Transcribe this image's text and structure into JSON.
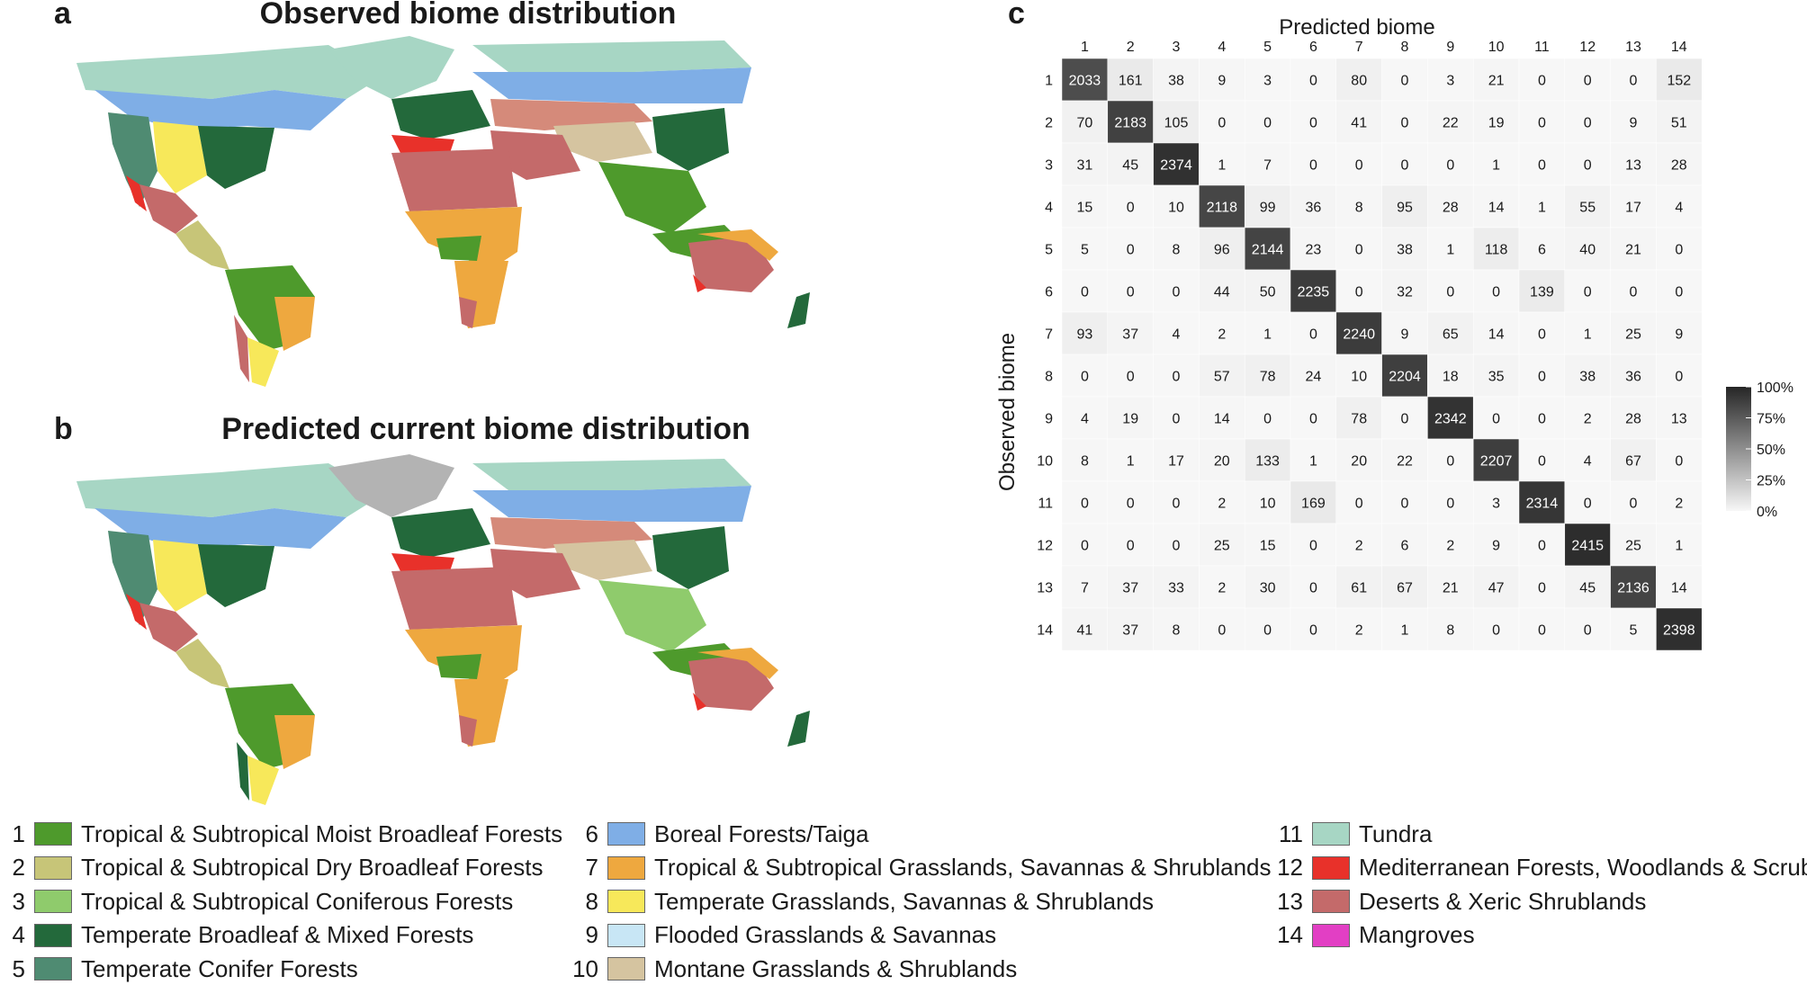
{
  "panels": {
    "a": {
      "letter": "a",
      "title": "Observed biome distribution"
    },
    "b": {
      "letter": "b",
      "title": "Predicted current biome distribution"
    },
    "c": {
      "letter": "c"
    }
  },
  "legend": [
    {
      "num": "1",
      "label": "Tropical & Subtropical Moist Broadleaf Forests",
      "color": "#4e9a2c"
    },
    {
      "num": "2",
      "label": "Tropical & Subtropical Dry Broadleaf Forests",
      "color": "#c7c578"
    },
    {
      "num": "3",
      "label": "Tropical & Subtropical Coniferous Forests",
      "color": "#8fcb6c"
    },
    {
      "num": "4",
      "label": "Temperate Broadleaf & Mixed Forests",
      "color": "#23693b"
    },
    {
      "num": "5",
      "label": "Temperate Conifer Forests",
      "color": "#4f8b72"
    },
    {
      "num": "6",
      "label": "Boreal Forests/Taiga",
      "color": "#7faee6"
    },
    {
      "num": "7",
      "label": "Tropical & Subtropical Grasslands, Savannas & Shrublands",
      "color": "#eea83f"
    },
    {
      "num": "8",
      "label": "Temperate Grasslands, Savannas & Shrublands",
      "color": "#f7e85a"
    },
    {
      "num": "9",
      "label": "Flooded Grasslands & Savannas",
      "color": "#c8e6f5"
    },
    {
      "num": "10",
      "label": "Montane Grasslands & Shrublands",
      "color": "#d5c4a0"
    },
    {
      "num": "11",
      "label": "Tundra",
      "color": "#a7d6c4"
    },
    {
      "num": "12",
      "label": "Mediterranean Forests, Woodlands & Scrub",
      "color": "#e8312a"
    },
    {
      "num": "13",
      "label": "Deserts & Xeric Shrublands",
      "color": "#c46a6a"
    },
    {
      "num": "14",
      "label": "Mangroves",
      "color": "#e23fc4"
    }
  ],
  "chart_data": {
    "type": "heatmap",
    "title": "",
    "xlabel": "Predicted biome",
    "ylabel": "Observed biome",
    "categories": [
      "1",
      "2",
      "3",
      "4",
      "5",
      "6",
      "7",
      "8",
      "9",
      "10",
      "11",
      "12",
      "13",
      "14"
    ],
    "matrix": [
      [
        2033,
        161,
        38,
        9,
        3,
        0,
        80,
        0,
        3,
        21,
        0,
        0,
        0,
        152
      ],
      [
        70,
        2183,
        105,
        0,
        0,
        0,
        41,
        0,
        22,
        19,
        0,
        0,
        9,
        51
      ],
      [
        31,
        45,
        2374,
        1,
        7,
        0,
        0,
        0,
        0,
        1,
        0,
        0,
        13,
        28
      ],
      [
        15,
        0,
        10,
        2118,
        99,
        36,
        8,
        95,
        28,
        14,
        1,
        55,
        17,
        4
      ],
      [
        5,
        0,
        8,
        96,
        2144,
        23,
        0,
        38,
        1,
        118,
        6,
        40,
        21,
        0
      ],
      [
        0,
        0,
        0,
        44,
        50,
        2235,
        0,
        32,
        0,
        0,
        139,
        0,
        0,
        0
      ],
      [
        93,
        37,
        4,
        2,
        1,
        0,
        2240,
        9,
        65,
        14,
        0,
        1,
        25,
        9
      ],
      [
        0,
        0,
        0,
        57,
        78,
        24,
        10,
        2204,
        18,
        35,
        0,
        38,
        36,
        0
      ],
      [
        4,
        19,
        0,
        14,
        0,
        0,
        78,
        0,
        2342,
        0,
        0,
        2,
        28,
        13
      ],
      [
        8,
        1,
        17,
        20,
        133,
        1,
        20,
        22,
        0,
        2207,
        0,
        4,
        67,
        0
      ],
      [
        0,
        0,
        0,
        2,
        10,
        169,
        0,
        0,
        0,
        3,
        2314,
        0,
        0,
        2
      ],
      [
        0,
        0,
        0,
        25,
        15,
        0,
        2,
        6,
        2,
        9,
        0,
        2415,
        25,
        1
      ],
      [
        7,
        37,
        33,
        2,
        30,
        0,
        61,
        67,
        21,
        47,
        0,
        45,
        2136,
        14
      ],
      [
        41,
        37,
        8,
        0,
        0,
        0,
        2,
        1,
        8,
        0,
        0,
        0,
        5,
        2398
      ]
    ],
    "colorbar": {
      "ticks": [
        "100%",
        "75%",
        "50%",
        "25%",
        "0%"
      ],
      "low_color": "#f7f7f7",
      "high_color": "#262626"
    }
  }
}
